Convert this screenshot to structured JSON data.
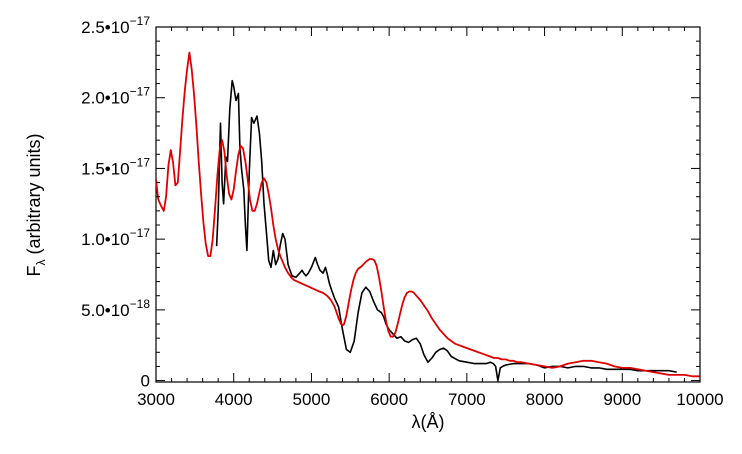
{
  "chart_data": {
    "type": "line",
    "xlabel": "λ(Å)",
    "ylabel": "Fλ (arbitrary units)",
    "ylabel_main": "F",
    "ylabel_sub": "λ",
    "ylabel_rest": " (arbitrary units)",
    "xlim": [
      3000,
      10000
    ],
    "ylim": [
      -1e-19,
      2.5e-17
    ],
    "x_ticks": [
      3000,
      4000,
      5000,
      6000,
      7000,
      8000,
      9000,
      10000
    ],
    "x_tick_labels": [
      "3000",
      "4000",
      "5000",
      "6000",
      "7000",
      "8000",
      "9000",
      "10000"
    ],
    "y_ticks": [
      {
        "value": 0,
        "mantissa": "0",
        "exponent": ""
      },
      {
        "value": 5e-18,
        "mantissa": "5.0•10",
        "exponent": "−18"
      },
      {
        "value": 1e-17,
        "mantissa": "1.0•10",
        "exponent": "−17"
      },
      {
        "value": 1.5e-17,
        "mantissa": "1.5•10",
        "exponent": "−17"
      },
      {
        "value": 2e-17,
        "mantissa": "2.0•10",
        "exponent": "−17"
      },
      {
        "value": 2.5e-17,
        "mantissa": "2.5•10",
        "exponent": "−17"
      }
    ],
    "grid": false,
    "legend": "none",
    "series": [
      {
        "color": "#000000",
        "x": [
          3780,
          3800,
          3830,
          3850,
          3870,
          3900,
          3920,
          3950,
          3980,
          4000,
          4030,
          4060,
          4080,
          4100,
          4130,
          4150,
          4170,
          4200,
          4230,
          4260,
          4300,
          4330,
          4360,
          4390,
          4420,
          4450,
          4480,
          4510,
          4540,
          4570,
          4600,
          4630,
          4660,
          4700,
          4750,
          4800,
          4850,
          4880,
          4900,
          4930,
          4960,
          5000,
          5050,
          5080,
          5110,
          5150,
          5180,
          5200,
          5230,
          5260,
          5300,
          5350,
          5400,
          5450,
          5500,
          5550,
          5600,
          5650,
          5700,
          5750,
          5800,
          5850,
          5900,
          5930,
          5960,
          6000,
          6050,
          6100,
          6150,
          6200,
          6250,
          6300,
          6350,
          6400,
          6450,
          6500,
          6550,
          6600,
          6650,
          6700,
          6750,
          6800,
          6900,
          7000,
          7100,
          7200,
          7250,
          7300,
          7340,
          7370,
          7400,
          7430,
          7460,
          7500,
          7600,
          7700,
          7800,
          7900,
          8000,
          8100,
          8200,
          8300,
          8400,
          8500,
          8600,
          8700,
          8800,
          8900,
          9000,
          9100,
          9200,
          9300,
          9400,
          9500,
          9600,
          9700
        ],
        "y": [
          9.5e-18,
          1.2e-17,
          1.82e-17,
          1.4e-17,
          1.25e-17,
          1.58e-17,
          1.55e-17,
          1.92e-17,
          2.12e-17,
          2.08e-17,
          1.98e-17,
          2.03e-17,
          1.65e-17,
          1.5e-17,
          1.35e-17,
          1.1e-17,
          9.2e-18,
          1.48e-17,
          1.86e-17,
          1.82e-17,
          1.87e-17,
          1.75e-17,
          1.55e-17,
          1.25e-17,
          1.05e-17,
          8.5e-18,
          8e-18,
          9.2e-18,
          8.2e-18,
          8.6e-18,
          9.6e-18,
          1.04e-17,
          1e-17,
          8.2e-18,
          7.4e-18,
          7.3e-18,
          7.6e-18,
          7.8e-18,
          7.6e-18,
          7.4e-18,
          7.6e-18,
          8e-18,
          8.7e-18,
          8.2e-18,
          7.8e-18,
          7.6e-18,
          8e-18,
          7.6e-18,
          6.9e-18,
          6.4e-18,
          5.8e-18,
          5.2e-18,
          3.6e-18,
          2.2e-18,
          2e-18,
          2.8e-18,
          4.8e-18,
          6.2e-18,
          6.6e-18,
          6.3e-18,
          5.6e-18,
          5e-18,
          4.8e-18,
          4.5e-18,
          4e-18,
          3.6e-18,
          3.3e-18,
          3e-18,
          3.1e-18,
          2.8e-18,
          2.7e-18,
          2.9e-18,
          3e-18,
          2.6e-18,
          1.8e-18,
          1.3e-18,
          1.6e-18,
          2e-18,
          2.2e-18,
          2.3e-18,
          2.1e-18,
          1.7e-18,
          1.4e-18,
          1.3e-18,
          1.2e-18,
          1.2e-18,
          1.2e-18,
          1.3e-18,
          1.2e-18,
          1e-18,
          0.0,
          9e-19,
          1e-18,
          1.1e-18,
          1.2e-18,
          1.2e-18,
          1.2e-18,
          1.1e-18,
          9e-19,
          1e-18,
          1e-18,
          9e-19,
          1e-18,
          1e-18,
          9e-19,
          9e-19,
          8e-19,
          8e-19,
          8e-19,
          8e-19,
          7e-19,
          7e-19,
          7e-19,
          7e-19,
          7e-19,
          6e-19
        ]
      },
      {
        "color": "#e00000",
        "x": [
          3000,
          3030,
          3060,
          3100,
          3130,
          3160,
          3190,
          3220,
          3250,
          3280,
          3310,
          3340,
          3370,
          3400,
          3430,
          3460,
          3490,
          3520,
          3550,
          3580,
          3610,
          3640,
          3670,
          3700,
          3730,
          3760,
          3790,
          3820,
          3850,
          3880,
          3910,
          3940,
          3970,
          4000,
          4030,
          4060,
          4090,
          4120,
          4150,
          4180,
          4210,
          4240,
          4270,
          4300,
          4330,
          4360,
          4390,
          4420,
          4450,
          4480,
          4510,
          4540,
          4570,
          4600,
          4630,
          4660,
          4700,
          4740,
          4780,
          4820,
          4860,
          4900,
          4940,
          4980,
          5020,
          5060,
          5100,
          5150,
          5200,
          5250,
          5300,
          5350,
          5380,
          5400,
          5420,
          5450,
          5480,
          5510,
          5540,
          5570,
          5600,
          5650,
          5700,
          5750,
          5780,
          5810,
          5840,
          5870,
          5900,
          5930,
          5960,
          5990,
          6020,
          6050,
          6080,
          6110,
          6140,
          6170,
          6200,
          6230,
          6260,
          6290,
          6320,
          6350,
          6400,
          6450,
          6500,
          6550,
          6600,
          6650,
          6700,
          6750,
          6800,
          6850,
          6900,
          6950,
          7000,
          7050,
          7100,
          7150,
          7200,
          7250,
          7300,
          7350,
          7400,
          7450,
          7500,
          7550,
          7600,
          7650,
          7700,
          7800,
          7900,
          8000,
          8100,
          8200,
          8300,
          8400,
          8500,
          8600,
          8700,
          8800,
          8900,
          9000,
          9100,
          9200,
          9300,
          9400,
          9500,
          9600,
          9700,
          9800,
          9900,
          10000
        ],
        "y": [
          1.42e-17,
          1.28e-17,
          1.24e-17,
          1.2e-17,
          1.3e-17,
          1.52e-17,
          1.63e-17,
          1.54e-17,
          1.38e-17,
          1.4e-17,
          1.62e-17,
          1.85e-17,
          2.05e-17,
          2.2e-17,
          2.32e-17,
          2.2e-17,
          2.02e-17,
          1.8e-17,
          1.55e-17,
          1.32e-17,
          1.12e-17,
          9.7e-18,
          8.8e-18,
          8.8e-18,
          1e-17,
          1.22e-17,
          1.45e-17,
          1.63e-17,
          1.7e-17,
          1.62e-17,
          1.45e-17,
          1.32e-17,
          1.28e-17,
          1.35e-17,
          1.48e-17,
          1.6e-17,
          1.66e-17,
          1.64e-17,
          1.55e-17,
          1.42e-17,
          1.28e-17,
          1.2e-17,
          1.2e-17,
          1.25e-17,
          1.33e-17,
          1.4e-17,
          1.43e-17,
          1.4e-17,
          1.32e-17,
          1.22e-17,
          1.1e-17,
          1e-17,
          9.3e-18,
          8.8e-18,
          8.4e-18,
          8e-18,
          7.6e-18,
          7.3e-18,
          7.1e-18,
          7e-18,
          6.9e-18,
          6.8e-18,
          6.7e-18,
          6.6e-18,
          6.5e-18,
          6.4e-18,
          6.3e-18,
          6.2e-18,
          6e-18,
          5.7e-18,
          5.2e-18,
          4.4e-18,
          4e-18,
          3.9e-18,
          4e-18,
          4.6e-18,
          5.5e-18,
          6.4e-18,
          7.1e-18,
          7.6e-18,
          7.9e-18,
          8.1e-18,
          8.4e-18,
          8.6e-18,
          8.6e-18,
          8.5e-18,
          8.1e-18,
          7.3e-18,
          6.3e-18,
          5.2e-18,
          4.2e-18,
          3.5e-18,
          3.1e-18,
          3.1e-18,
          3.4e-18,
          4e-18,
          4.7e-18,
          5.4e-18,
          5.9e-18,
          6.2e-18,
          6.3e-18,
          6.3e-18,
          6.2e-18,
          6e-18,
          5.7e-18,
          5.3e-18,
          4.9e-18,
          4.4e-18,
          4e-18,
          3.6e-18,
          3.3e-18,
          3e-18,
          2.8e-18,
          2.6e-18,
          2.5e-18,
          2.4e-18,
          2.3e-18,
          2.2e-18,
          2.1e-18,
          2e-18,
          1.9e-18,
          1.8e-18,
          1.7e-18,
          1.6e-18,
          1.6e-18,
          1.5e-18,
          1.5e-18,
          1.4e-18,
          1.4e-18,
          1.3e-18,
          1.3e-18,
          1.2e-18,
          1.1e-18,
          1e-18,
          9e-19,
          1e-18,
          1.2e-18,
          1.3e-18,
          1.4e-18,
          1.4e-18,
          1.3e-18,
          1.2e-18,
          1e-18,
          9e-19,
          9e-19,
          8e-19,
          7e-19,
          6e-19,
          5e-19,
          4e-19,
          4e-19,
          4e-19,
          3e-19,
          3e-19
        ]
      }
    ]
  }
}
